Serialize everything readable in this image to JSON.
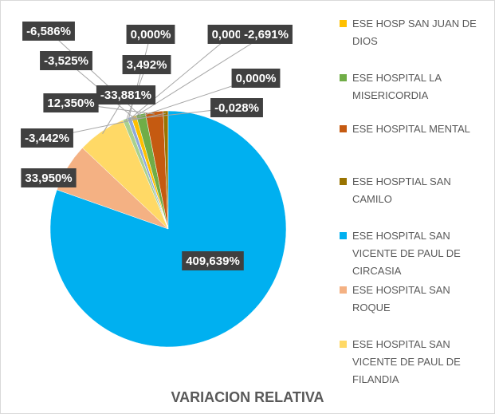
{
  "chart_data": {
    "type": "pie",
    "title": "VARIACION RELATIVA",
    "categories": [
      "ESE HOSP SAN JUAN DE DIOS",
      "ESE HOSPITAL LA MISERICORDIA",
      "ESE HOSPITAL MENTAL",
      "ESE HOSPTIAL SAN CAMILO",
      "ESE HOSPITAL SAN VICENTE DE PAUL DE CIRCASIA",
      "ESE HOSPITAL SAN ROQUE",
      "ESE HOSPITAL SAN VICENTE DE PAUL DE FILANDIA",
      null,
      null,
      null,
      null,
      null,
      null
    ],
    "values": [
      -3.525,
      -6.586,
      12.35,
      -3.442,
      409.639,
      33.95,
      -33.881,
      3.492,
      0,
      0,
      -2.691,
      0,
      -0.028
    ],
    "value_labels": [
      "-3,525%",
      "-6,586%",
      "12,350%",
      "-3,442%",
      "409,639%",
      "33,950%",
      "-33,881%",
      "3,492%",
      "0,000%",
      "0,000%",
      "-2,691%",
      "0,000%",
      "-0,028%"
    ],
    "colors": [
      "#FFC000",
      "#70AD47",
      "#C55A11",
      "#997300",
      "#00B0F0",
      "#F4B183",
      "#FFD966",
      "#A9D18E",
      "#9DC3E6",
      "#FFE699",
      "#8FAADC",
      "#C9C9C9",
      "#F8CBAD"
    ]
  }
}
